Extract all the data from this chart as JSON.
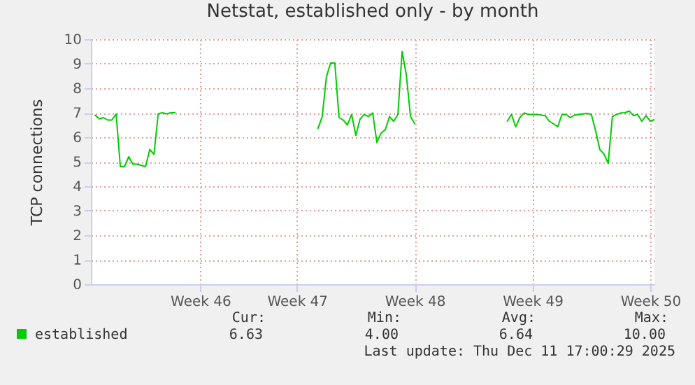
{
  "chart_data": {
    "type": "line",
    "title": "Netstat, established only - by month",
    "ylabel": "TCP connections",
    "categories": [
      null,
      null,
      null,
      null,
      null,
      null,
      null,
      null,
      null,
      null,
      null,
      null,
      null,
      null,
      null,
      null,
      null,
      null,
      null,
      null,
      null,
      null,
      null,
      null,
      null,
      null,
      "Week 46",
      null,
      null,
      null,
      null,
      null,
      null,
      null,
      null,
      null,
      null,
      null,
      null,
      null,
      null,
      null,
      null,
      null,
      null,
      null,
      null,
      null,
      null,
      "Week 47",
      null,
      null,
      null,
      null,
      null,
      null,
      null,
      null,
      null,
      null,
      null,
      null,
      null,
      null,
      null,
      null,
      null,
      null,
      null,
      null,
      null,
      null,
      null,
      null,
      null,
      null,
      null,
      "Week 48",
      null,
      null,
      null,
      null,
      null,
      null,
      null,
      null,
      null,
      null,
      null,
      null,
      null,
      null,
      null,
      null,
      null,
      null,
      null,
      null,
      null,
      null,
      null,
      null,
      null,
      null,
      null,
      "Week 49",
      null,
      null,
      null,
      null,
      null,
      null,
      null,
      null,
      null,
      null,
      null,
      null,
      null,
      null,
      null,
      null,
      null,
      null,
      null,
      null,
      null,
      null,
      null,
      null,
      null,
      null,
      null,
      "Week 50",
      null
    ],
    "series": [
      {
        "name": "established",
        "color": "#00cc00",
        "values": [
          null,
          6.9,
          6.75,
          6.8,
          6.7,
          6.7,
          6.95,
          4.8,
          4.8,
          5.2,
          4.9,
          4.9,
          4.85,
          4.8,
          5.5,
          5.3,
          6.95,
          7.0,
          6.95,
          7.0,
          7.0,
          null,
          null,
          null,
          null,
          null,
          null,
          null,
          null,
          null,
          null,
          null,
          null,
          null,
          null,
          null,
          null,
          null,
          null,
          null,
          null,
          null,
          null,
          null,
          null,
          null,
          null,
          null,
          null,
          null,
          null,
          null,
          null,
          null,
          6.36,
          6.84,
          8.46,
          9.03,
          9.03,
          6.8,
          6.7,
          6.5,
          6.93,
          6.07,
          6.74,
          6.93,
          6.84,
          6.99,
          5.79,
          6.17,
          6.3,
          6.84,
          6.65,
          6.93,
          9.5,
          8.55,
          6.84,
          6.55,
          null,
          null,
          null,
          null,
          null,
          null,
          null,
          null,
          null,
          null,
          null,
          null,
          null,
          null,
          null,
          null,
          null,
          null,
          null,
          null,
          null,
          6.65,
          6.93,
          6.42,
          6.8,
          6.99,
          6.93,
          6.93,
          6.93,
          6.9,
          6.88,
          6.65,
          6.55,
          6.42,
          6.93,
          6.93,
          6.8,
          6.9,
          6.93,
          6.95,
          6.97,
          6.93,
          6.27,
          5.5,
          5.31,
          4.93,
          6.84,
          6.93,
          6.99,
          7.0,
          7.07,
          6.88,
          6.93,
          6.65,
          6.88,
          6.65,
          6.72
        ]
      }
    ],
    "ylim": [
      0,
      10
    ],
    "yticks": [
      0,
      1,
      2,
      3,
      4,
      5,
      6,
      7,
      8,
      9,
      10
    ],
    "grid": true,
    "legend": "bottom left",
    "marker": "none",
    "line_style": "solid",
    "annotations": [
      "Cur:",
      "Min:",
      "Avg:",
      "Max:",
      "6.63",
      "4.00",
      "6.64",
      "10.00",
      "Last update: Thu Dec 11 17:00:29 2025"
    ]
  }
}
